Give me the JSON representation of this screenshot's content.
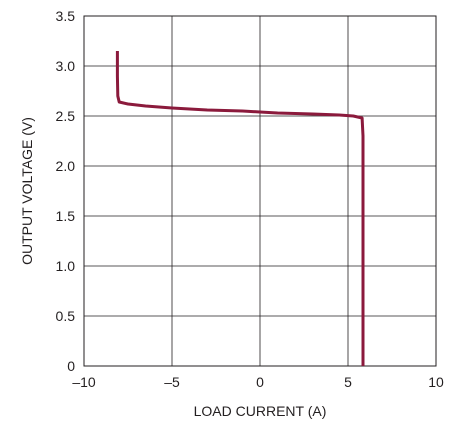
{
  "chart_data": {
    "type": "line",
    "xlabel": "LOAD CURRENT (A)",
    "ylabel": "OUTPUT VOLTAGE (V)",
    "xlim": [
      -10,
      10
    ],
    "ylim": [
      0,
      3.5
    ],
    "x_ticks": [
      -10,
      -5,
      0,
      5,
      10
    ],
    "x_tick_labels": [
      "–10",
      "–5",
      "0",
      "5",
      "10"
    ],
    "y_ticks": [
      0,
      0.5,
      1.0,
      1.5,
      2.0,
      2.5,
      3.0,
      3.5
    ],
    "y_tick_labels": [
      "0",
      "0.5",
      "1.0",
      "1.5",
      "2.0",
      "2.5",
      "3.0",
      "3.5"
    ],
    "grid": true,
    "series_color": "#8b1a3c",
    "series": [
      {
        "x": [
          -8.1,
          -8.1,
          -8.08,
          -8.0,
          -7.5,
          -6.5,
          -5.0,
          -3.0,
          -1.0,
          0.0,
          1.0,
          3.0,
          4.5,
          5.3,
          5.8,
          5.85,
          5.85,
          5.85
        ],
        "y": [
          3.15,
          2.9,
          2.7,
          2.64,
          2.62,
          2.6,
          2.58,
          2.56,
          2.55,
          2.54,
          2.53,
          2.52,
          2.51,
          2.5,
          2.48,
          2.3,
          1.0,
          0.0
        ]
      }
    ]
  }
}
